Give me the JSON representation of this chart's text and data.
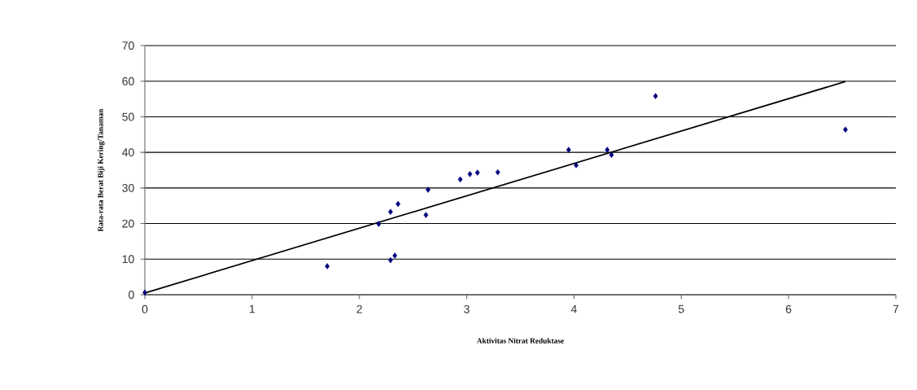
{
  "chart_data": {
    "type": "scatter",
    "xlabel": "Aktivitas Nitrat Reduktase",
    "ylabel": "Rata-rata Berat Biji Kering/Tanaman",
    "xlim": [
      0,
      7
    ],
    "xticks": [
      0,
      1,
      2,
      3,
      4,
      5,
      6,
      7
    ],
    "ylim": [
      0,
      70
    ],
    "yticks": [
      0,
      10,
      20,
      30,
      40,
      50,
      60,
      70
    ],
    "grid": "y",
    "series": [
      {
        "color": "#00007f",
        "marker": "diamond",
        "x": [
          0,
          1.7,
          2.18,
          2.29,
          2.33,
          2.29,
          2.36,
          2.62,
          2.64,
          2.94,
          3.03,
          3.1,
          3.29,
          3.95,
          4.02,
          4.31,
          4.35,
          4.76,
          6.53
        ],
        "values": [
          0.6,
          8.0,
          19.9,
          9.7,
          11.0,
          23.3,
          25.5,
          22.4,
          29.5,
          32.4,
          33.9,
          34.3,
          34.4,
          40.7,
          36.4,
          40.7,
          39.3,
          55.8,
          46.4
        ]
      },
      {
        "type": "line",
        "color": "#000000",
        "marker": "none",
        "line_style": "solid",
        "x": [
          0,
          6.53
        ],
        "values": [
          0.5,
          59.9
        ]
      }
    ]
  }
}
